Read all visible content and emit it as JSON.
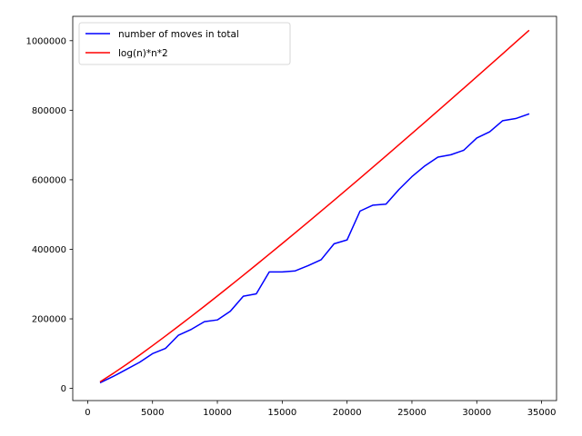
{
  "chart_data": {
    "type": "line",
    "title": "",
    "xlabel": "",
    "ylabel": "",
    "xlim": [
      -1150,
      36150
    ],
    "ylim": [
      -35000,
      1070000
    ],
    "xticks": [
      0,
      5000,
      10000,
      15000,
      20000,
      25000,
      30000,
      35000
    ],
    "yticks": [
      0,
      200000,
      400000,
      600000,
      800000,
      1000000
    ],
    "grid": false,
    "legend_position": "top-left",
    "series": [
      {
        "name": "number of moves in total",
        "color": "#0000ff",
        "x": [
          1000,
          2000,
          3000,
          4000,
          5000,
          6000,
          7000,
          8000,
          9000,
          10000,
          11000,
          12000,
          13000,
          14000,
          15000,
          16000,
          17000,
          18000,
          19000,
          20000,
          21000,
          22000,
          23000,
          24000,
          25000,
          26000,
          27000,
          28000,
          29000,
          30000,
          31000,
          32000,
          33000,
          34000
        ],
        "y": [
          17000,
          35000,
          55000,
          75000,
          100000,
          115000,
          153000,
          170000,
          192000,
          197000,
          222000,
          265000,
          272000,
          335000,
          335000,
          338000,
          353000,
          370000,
          416000,
          427000,
          510000,
          527000,
          530000,
          572000,
          609000,
          640000,
          665000,
          672000,
          685000,
          720000,
          738000,
          770000,
          776000,
          789000
        ]
      },
      {
        "name": "log(n)*n*2",
        "color": "#ff0000",
        "func": "log(n)*n*2",
        "x": [
          1000,
          2000,
          3000,
          4000,
          5000,
          6000,
          7000,
          8000,
          9000,
          10000,
          11000,
          12000,
          13000,
          14000,
          15000,
          16000,
          17000,
          18000,
          19000,
          20000,
          21000,
          22000,
          23000,
          24000,
          25000,
          26000,
          27000,
          28000,
          29000,
          30000,
          31000,
          32000,
          33000,
          34000
        ],
        "y": [
          19932,
          43863,
          69302,
          95726,
          122877,
          150603,
          178807,
          207422,
          236398,
          265754,
          295397,
          325322,
          355521,
          385962,
          416622,
          447508,
          478569,
          509829,
          541266,
          572880,
          604656,
          636582,
          668649,
          700849,
          733176,
          765621,
          798179,
          830843,
          863610,
          896474,
          929432,
          962479,
          995614,
          1028836
        ]
      }
    ]
  }
}
